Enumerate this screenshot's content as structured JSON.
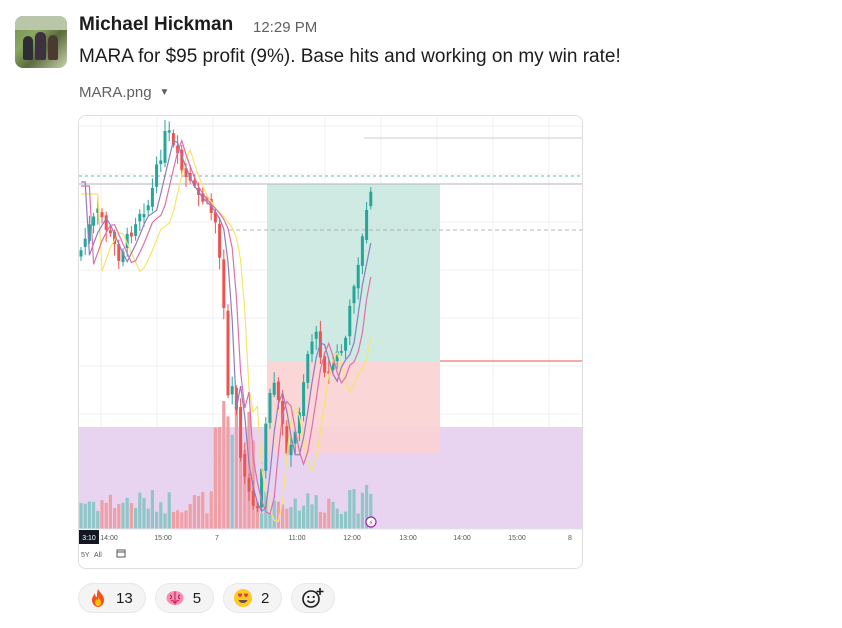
{
  "message": {
    "author": "Michael Hickman",
    "time": "12:29 PM",
    "text": "MARA for $95 profit (9%). Base hits and working on my win rate!",
    "attachment_name": "MARA.png"
  },
  "chart_data": {
    "type": "candlestick",
    "symbol": "MARA",
    "x_tick_labels": [
      "3:10",
      "14:00",
      "15:00",
      "7",
      "11:00",
      "12:00",
      "13:00",
      "14:00",
      "15:00",
      "8"
    ],
    "toolbar_labels": [
      "5Y",
      "All"
    ],
    "colors": {
      "up": "#26a69a",
      "down": "#ef5350",
      "profit_zone": "#cfeae3",
      "loss_zone": "#f9d2d3",
      "volume_panel": "#e4cdee"
    }
  },
  "reactions": [
    {
      "emoji": "fire",
      "count": "13"
    },
    {
      "emoji": "brain",
      "count": "5"
    },
    {
      "emoji": "heart-eyes",
      "count": "2"
    }
  ]
}
